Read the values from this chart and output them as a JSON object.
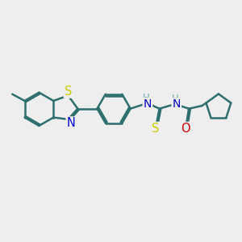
{
  "bg_color": "#eeeeee",
  "bond_color": "#2d6e6e",
  "bond_width": 1.8,
  "atom_colors": {
    "S": "#cccc00",
    "N": "#0000cc",
    "O": "#cc0000",
    "C": "#2d6e6e",
    "H": "#6aadad"
  },
  "font_size": 9.5
}
